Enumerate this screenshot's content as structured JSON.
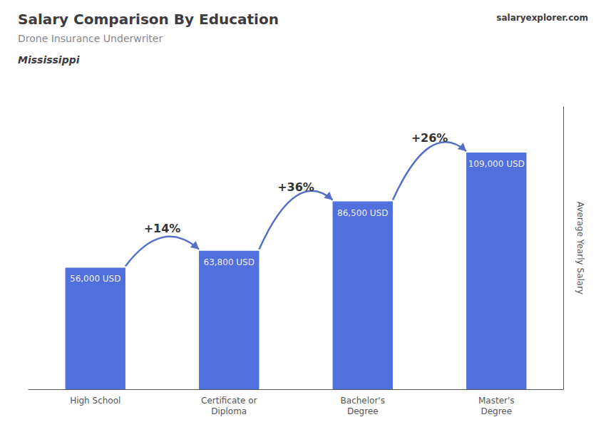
{
  "chart_data": {
    "type": "bar",
    "title": "Salary Comparison By Education",
    "subtitle": "Drone Insurance Underwriter",
    "location": "Mississippi",
    "site": "salaryexplorer.com",
    "ylabel": "Average Yearly Salary",
    "categories": [
      "High School",
      "Certificate or\nDiploma",
      "Bachelor's\nDegree",
      "Master's\nDegree"
    ],
    "values": [
      56000,
      63800,
      86500,
      109000
    ],
    "value_labels": [
      "56,000 USD",
      "63,800 USD",
      "86,500 USD",
      "109,000 USD"
    ],
    "data_labels": true,
    "annotations": [
      {
        "text": "+14%",
        "from": "High School",
        "to": "Certificate or\nDiploma"
      },
      {
        "text": "+36%",
        "from": "Certificate or\nDiploma",
        "to": "Bachelor's\nDegree"
      },
      {
        "text": "+26%",
        "from": "Bachelor's\nDegree",
        "to": "Master's\nDegree"
      }
    ],
    "ylim": [
      0,
      130000
    ],
    "tick_labels": "x",
    "grid": false
  }
}
